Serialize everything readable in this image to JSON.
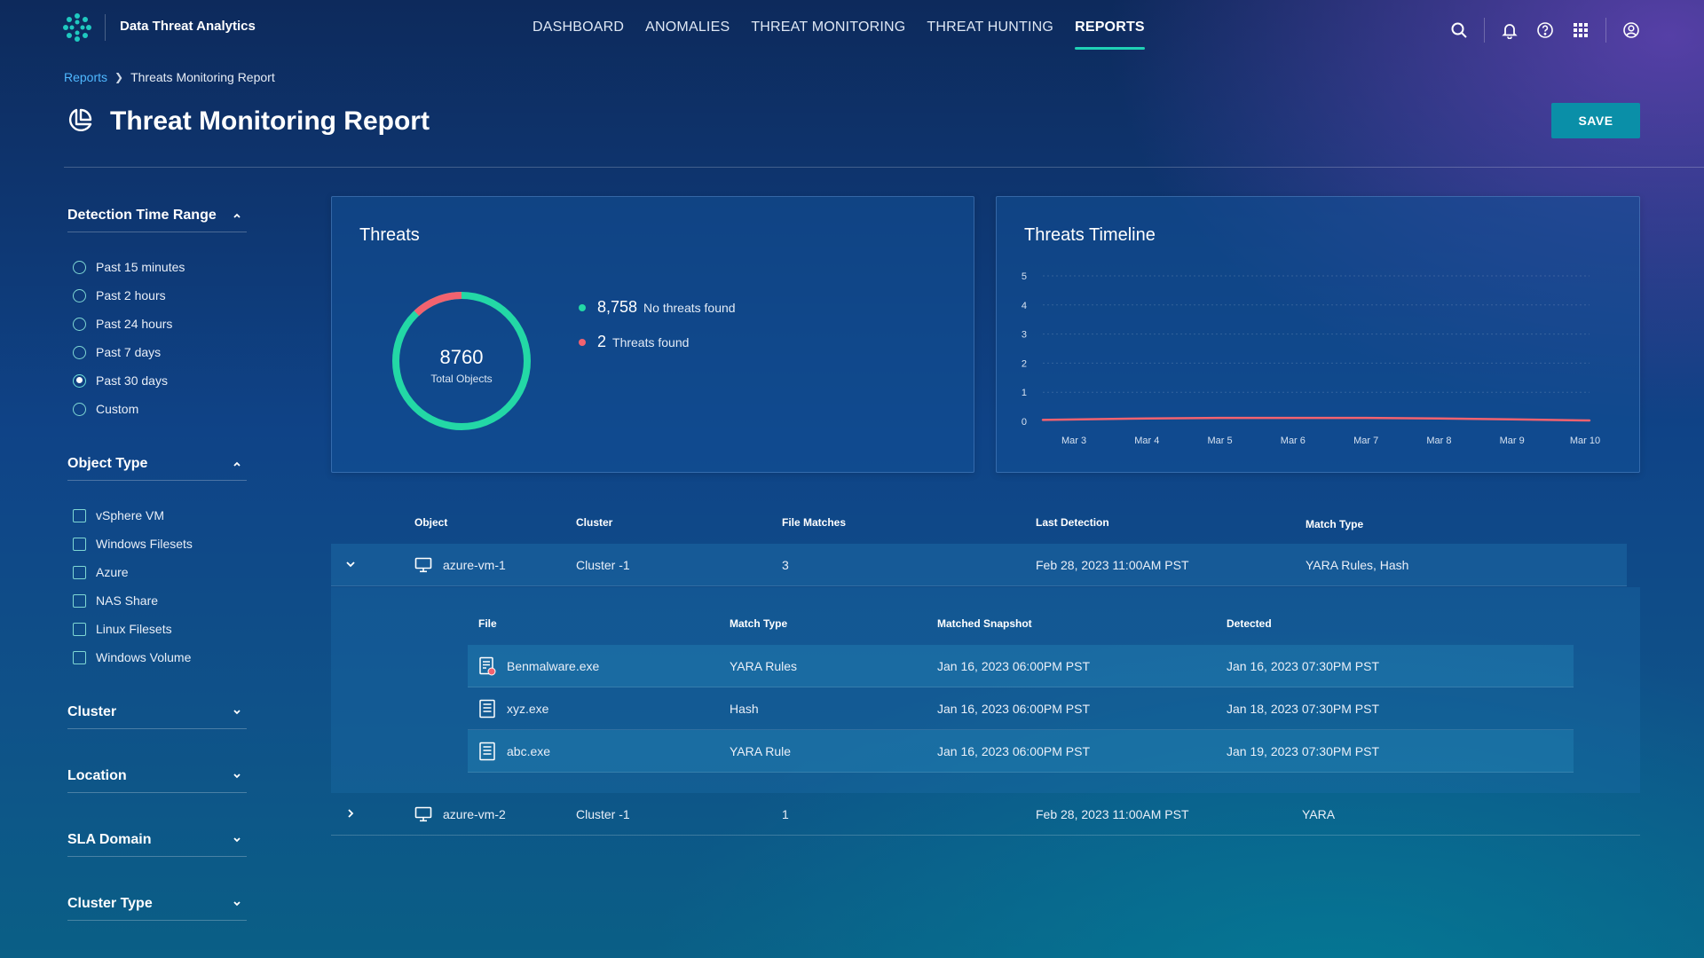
{
  "app": {
    "title": "Data Threat Analytics"
  },
  "nav": {
    "items": [
      {
        "label": "DASHBOARD"
      },
      {
        "label": "ANOMALIES"
      },
      {
        "label": "THREAT MONITORING"
      },
      {
        "label": "THREAT HUNTING"
      },
      {
        "label": "REPORTS"
      }
    ],
    "active": "REPORTS"
  },
  "breadcrumb": {
    "parent": "Reports",
    "current": "Threats Monitoring Report"
  },
  "page": {
    "title": "Threat Monitoring Report",
    "save_label": "SAVE"
  },
  "filters": {
    "time_range": {
      "label": "Detection Time Range",
      "options": [
        "Past 15 minutes",
        "Past 2 hours",
        "Past 24 hours",
        "Past 7 days",
        "Past 30 days",
        "Custom"
      ],
      "selected": "Past 30 days"
    },
    "object_type": {
      "label": "Object Type",
      "options": [
        "vSphere VM",
        "Windows Filesets",
        "Azure",
        "NAS Share",
        "Linux Filesets",
        "Windows Volume"
      ]
    },
    "collapsed": [
      "Cluster",
      "Location",
      "SLA Domain",
      "Cluster Type"
    ]
  },
  "threats_card": {
    "title": "Threats",
    "total": "8760",
    "total_label": "Total Objects",
    "legend": [
      {
        "value": "8,758",
        "label": "No threats found",
        "color": "#23d8a6"
      },
      {
        "value": "2",
        "label": "Threats found",
        "color": "#f2626f"
      }
    ],
    "clean_count": 8758,
    "threat_count": 2
  },
  "chart_data": {
    "type": "line",
    "title": "Threats Timeline",
    "categories": [
      "Mar 3",
      "Mar 4",
      "Mar 5",
      "Mar 6",
      "Mar 7",
      "Mar 8",
      "Mar 9",
      "Mar 10"
    ],
    "series": [
      {
        "name": "Threats",
        "values": [
          0.05,
          0.1,
          0.12,
          0.12,
          0.12,
          0.1,
          0.07,
          0.03
        ],
        "color": "#f2626f"
      }
    ],
    "ylim": [
      0,
      5
    ],
    "yticks": [
      "0",
      "1",
      "2",
      "3",
      "4",
      "5"
    ],
    "grid": true,
    "xlabel": "",
    "ylabel": ""
  },
  "table": {
    "headers": {
      "object": "Object",
      "cluster": "Cluster",
      "file_matches": "File Matches",
      "last_detection": "Last Detection",
      "match_type": "Match Type"
    },
    "rows": [
      {
        "object": "azure-vm-1",
        "cluster": "Cluster -1",
        "file_matches": "3",
        "last_detection": "Feb 28, 2023 11:00AM PST",
        "match_type": "YARA Rules, Hash"
      },
      {
        "object": "azure-vm-2",
        "cluster": "Cluster -1",
        "file_matches": "1",
        "last_detection": "Feb 28, 2023 11:00AM PST",
        "match_type": "YARA"
      }
    ],
    "sub_headers": {
      "file": "File",
      "match_type": "Match Type",
      "snapshot": "Matched Snapshot",
      "detected": "Detected"
    },
    "sub_rows": [
      {
        "file": "Benmalware.exe",
        "match_type": "YARA Rules",
        "snapshot": "Jan 16, 2023 06:00PM PST",
        "detected": "Jan 16, 2023 07:30PM PST"
      },
      {
        "file": "xyz.exe",
        "match_type": "Hash",
        "snapshot": "Jan 16, 2023 06:00PM PST",
        "detected": "Jan 18, 2023 07:30PM PST"
      },
      {
        "file": "abc.exe",
        "match_type": "YARA Rule",
        "snapshot": "Jan 16, 2023 06:00PM PST",
        "detected": "Jan 19, 2023 07:30PM PST"
      }
    ]
  }
}
